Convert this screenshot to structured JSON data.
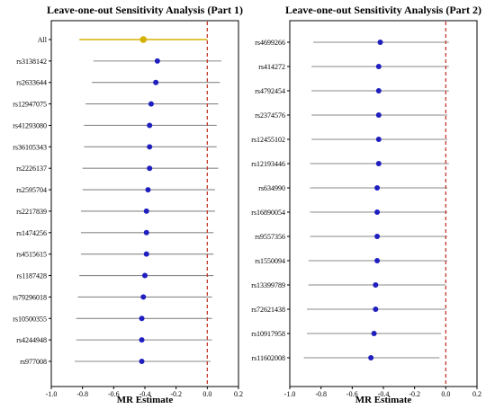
{
  "chart_data": [
    {
      "type": "forest",
      "title": "Leave-one-out Sensitivity Analysis (Part 1)",
      "xlabel": "MR Estimate",
      "xlim": [
        -1.0,
        0.2
      ],
      "xticks": [
        "-1.0",
        "-0.8",
        "-0.6",
        "-0.4",
        "-0.2",
        "0.0",
        "0.2"
      ],
      "reference_line_x": 0.0,
      "reference_line_color": "#c0392b",
      "point_color": "#1f1fbf",
      "summary_color": "#d4b000",
      "ci_color": "#888888",
      "rows": [
        {
          "label": "All",
          "estimate": -0.41,
          "lower": -0.82,
          "upper": 0.0,
          "summary": true
        },
        {
          "label": "rs3138142",
          "estimate": -0.32,
          "lower": -0.73,
          "upper": 0.09
        },
        {
          "label": "rs2633644",
          "estimate": -0.33,
          "lower": -0.74,
          "upper": 0.08
        },
        {
          "label": "rs12947075",
          "estimate": -0.36,
          "lower": -0.78,
          "upper": 0.07
        },
        {
          "label": "rs41293080",
          "estimate": -0.37,
          "lower": -0.79,
          "upper": 0.06
        },
        {
          "label": "rs36105343",
          "estimate": -0.37,
          "lower": -0.79,
          "upper": 0.06
        },
        {
          "label": "rs2226137",
          "estimate": -0.37,
          "lower": -0.8,
          "upper": 0.07
        },
        {
          "label": "rs2595704",
          "estimate": -0.38,
          "lower": -0.8,
          "upper": 0.05
        },
        {
          "label": "rs2217839",
          "estimate": -0.39,
          "lower": -0.81,
          "upper": 0.05
        },
        {
          "label": "rs1474256",
          "estimate": -0.39,
          "lower": -0.81,
          "upper": 0.04
        },
        {
          "label": "rs4515615",
          "estimate": -0.39,
          "lower": -0.81,
          "upper": 0.04
        },
        {
          "label": "rs1187428",
          "estimate": -0.4,
          "lower": -0.82,
          "upper": 0.04
        },
        {
          "label": "rs79296018",
          "estimate": -0.41,
          "lower": -0.83,
          "upper": 0.03
        },
        {
          "label": "rs10500355",
          "estimate": -0.42,
          "lower": -0.84,
          "upper": 0.03
        },
        {
          "label": "rs4244948",
          "estimate": -0.42,
          "lower": -0.84,
          "upper": 0.03
        },
        {
          "label": "rs977008",
          "estimate": -0.42,
          "lower": -0.85,
          "upper": 0.02
        }
      ]
    },
    {
      "type": "forest",
      "title": "Leave-one-out Sensitivity Analysis (Part 2)",
      "xlabel": "MR Estimate",
      "xlim": [
        -1.0,
        0.2
      ],
      "xticks": [
        "-1.0",
        "-0.8",
        "-0.6",
        "-0.4",
        "-0.2",
        "0.0",
        "0.2"
      ],
      "reference_line_x": 0.0,
      "reference_line_color": "#c0392b",
      "point_color": "#1f1fbf",
      "ci_color": "#888888",
      "rows": [
        {
          "label": "rs4699266",
          "estimate": -0.42,
          "lower": -0.85,
          "upper": 0.02
        },
        {
          "label": "rs414272",
          "estimate": -0.43,
          "lower": -0.86,
          "upper": 0.02
        },
        {
          "label": "rs4792454",
          "estimate": -0.43,
          "lower": -0.86,
          "upper": 0.02
        },
        {
          "label": "rs2374576",
          "estimate": -0.43,
          "lower": -0.86,
          "upper": 0.01
        },
        {
          "label": "rs12455102",
          "estimate": -0.43,
          "lower": -0.86,
          "upper": 0.01
        },
        {
          "label": "rs12193446",
          "estimate": -0.43,
          "lower": -0.87,
          "upper": 0.02
        },
        {
          "label": "rs634990",
          "estimate": -0.44,
          "lower": -0.87,
          "upper": 0.01
        },
        {
          "label": "rs16890054",
          "estimate": -0.44,
          "lower": -0.87,
          "upper": 0.01
        },
        {
          "label": "rs9557356",
          "estimate": -0.44,
          "lower": -0.87,
          "upper": 0.01
        },
        {
          "label": "rs1550094",
          "estimate": -0.44,
          "lower": -0.88,
          "upper": 0.01
        },
        {
          "label": "rs13399789",
          "estimate": -0.45,
          "lower": -0.88,
          "upper": 0.0
        },
        {
          "label": "rs72621438",
          "estimate": -0.45,
          "lower": -0.89,
          "upper": 0.0
        },
        {
          "label": "rs10917958",
          "estimate": -0.46,
          "lower": -0.89,
          "upper": -0.03
        },
        {
          "label": "rs11602008",
          "estimate": -0.48,
          "lower": -0.91,
          "upper": -0.04
        }
      ]
    }
  ]
}
